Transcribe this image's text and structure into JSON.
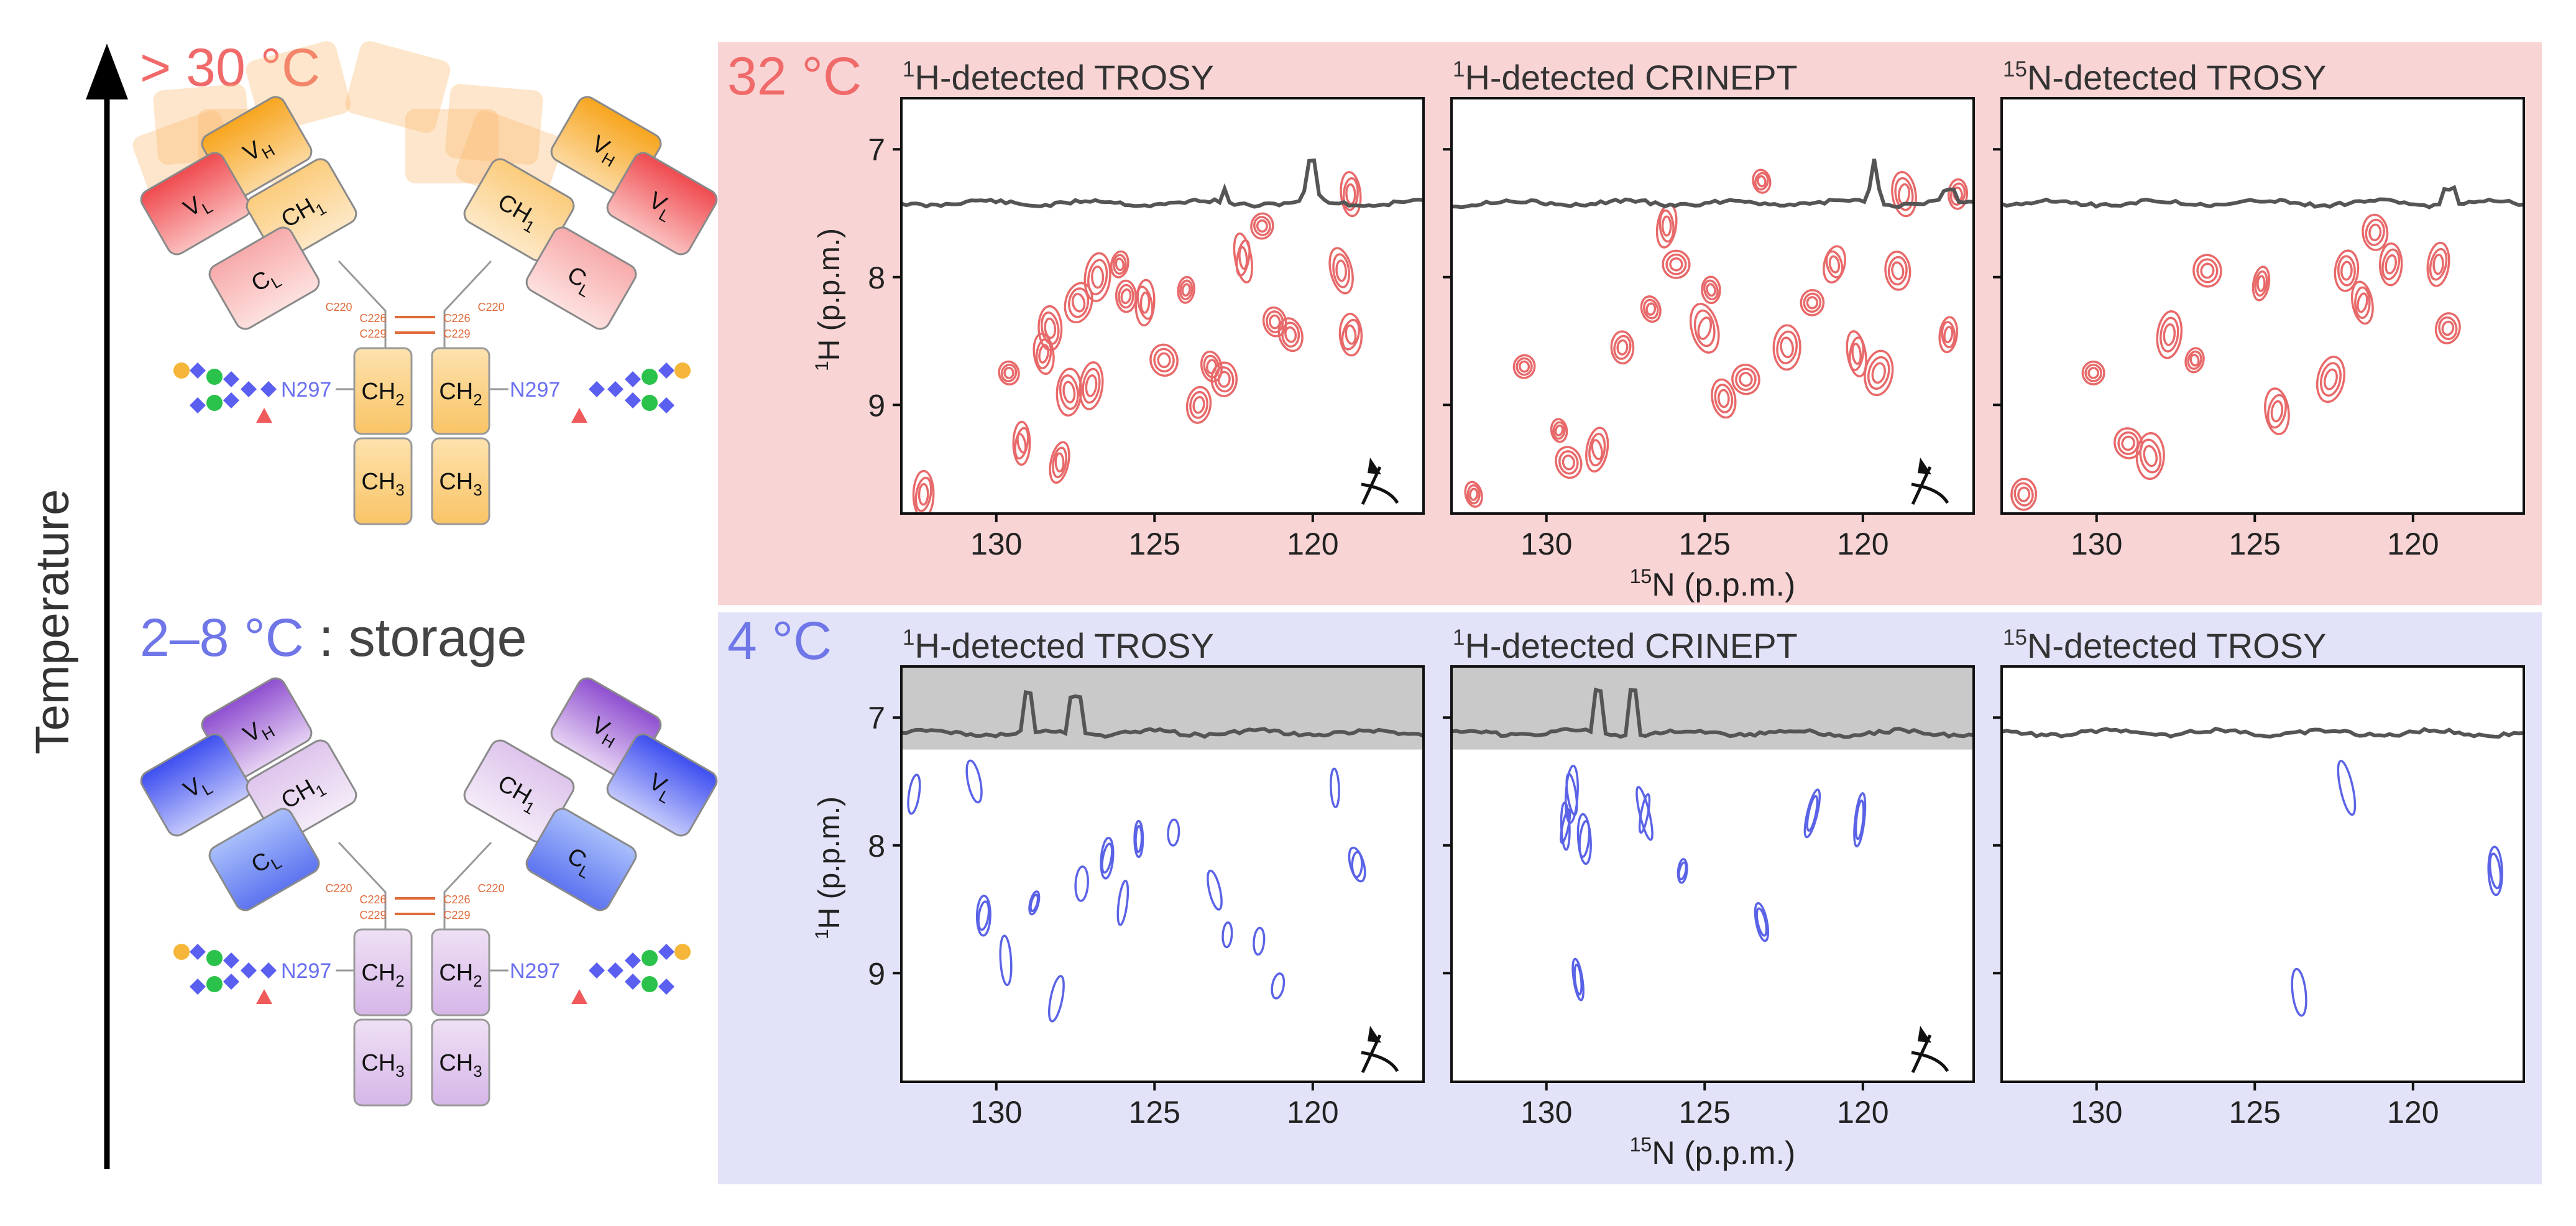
{
  "figure": {
    "temperature_axis_label": "Temperature",
    "hot_label": "> 30 °C",
    "cold_label": "2–8 °C",
    "cold_suffix": " : storage",
    "domains": {
      "vh": [
        "V",
        "H"
      ],
      "vl": [
        "V",
        "L"
      ],
      "ch1": [
        "CH",
        "1"
      ],
      "cl": [
        "C",
        "L"
      ],
      "ch2": [
        "CH",
        "2"
      ],
      "ch3": [
        "CH",
        "3"
      ]
    },
    "glycan_site": "N297",
    "disulfide_labels": [
      "C226",
      "C229",
      "C220"
    ]
  },
  "rows": [
    {
      "temperature": "32 °C",
      "panels": [
        {
          "title_sup": "1",
          "title_rest": "H-detected TROSY",
          "pulse_symbol": true
        },
        {
          "title_sup": "1",
          "title_rest": "H-detected CRINEPT",
          "pulse_symbol": true
        },
        {
          "title_sup": "15",
          "title_rest": "N-detected TROSY",
          "pulse_symbol": false
        }
      ]
    },
    {
      "temperature": "4 °C",
      "panels": [
        {
          "title_sup": "1",
          "title_rest": "H-detected TROSY",
          "pulse_symbol": true
        },
        {
          "title_sup": "1",
          "title_rest": "H-detected CRINEPT",
          "pulse_symbol": true
        },
        {
          "title_sup": "15",
          "title_rest": "N-detected TROSY",
          "pulse_symbol": false
        }
      ]
    }
  ],
  "axes": {
    "x_label_sup": "15",
    "x_label_rest": "N (p.p.m.)",
    "y_label_sup": "1",
    "y_label_rest": "H (p.p.m.)",
    "x_ticks": [
      "130",
      "125",
      "120"
    ],
    "y_ticks": [
      "7",
      "8",
      "9"
    ]
  },
  "chart_data": [
    {
      "type": "scatter",
      "title": "32 °C 1H-detected TROSY",
      "xlabel": "15N (p.p.m.)",
      "ylabel": "1H (p.p.m.)",
      "xlim": [
        133,
        116.5
      ],
      "ylim": [
        6.6,
        9.85
      ],
      "peaks_x": [
        132.3,
        129.6,
        129.2,
        128.3,
        128.0,
        127.4,
        127.0,
        126.8,
        126.1,
        125.9,
        125.3,
        124.7,
        124.0,
        123.6,
        123.2,
        122.8,
        122.2,
        121.6,
        121.2,
        120.7,
        119.1,
        118.8,
        118.8,
        128.5,
        127.7
      ],
      "peaks_y": [
        9.7,
        8.75,
        9.3,
        8.4,
        9.45,
        8.2,
        8.85,
        8.0,
        7.9,
        8.15,
        8.2,
        8.65,
        8.1,
        9.0,
        8.7,
        8.8,
        7.85,
        7.6,
        8.35,
        8.45,
        7.95,
        8.45,
        7.35,
        8.6,
        8.9
      ]
    },
    {
      "type": "scatter",
      "title": "32 °C 1H-detected CRINEPT",
      "xlabel": "15N (p.p.m.)",
      "ylabel": "1H (p.p.m.)",
      "xlim": [
        133,
        116.5
      ],
      "ylim": [
        6.6,
        9.85
      ],
      "peaks_x": [
        132.3,
        130.7,
        129.6,
        129.3,
        128.4,
        127.6,
        126.7,
        125.9,
        125.0,
        124.4,
        123.7,
        123.2,
        122.4,
        121.6,
        120.9,
        120.2,
        119.5,
        118.9,
        118.7,
        117.3,
        117.0,
        126.2,
        124.8
      ],
      "peaks_y": [
        9.7,
        8.7,
        9.2,
        9.45,
        9.35,
        8.55,
        8.25,
        7.9,
        8.4,
        8.95,
        8.8,
        7.25,
        8.55,
        8.2,
        7.9,
        8.6,
        8.75,
        7.95,
        7.35,
        8.45,
        7.35,
        7.6,
        8.1
      ]
    },
    {
      "type": "scatter",
      "title": "32 °C 15N-detected TROSY",
      "xlabel": "15N (p.p.m.)",
      "ylabel": "1H (p.p.m.)",
      "xlim": [
        133,
        116.5
      ],
      "ylim": [
        6.6,
        9.85
      ],
      "peaks_x": [
        132.3,
        130.1,
        129.0,
        128.3,
        127.7,
        126.9,
        126.5,
        124.8,
        124.3,
        122.6,
        122.1,
        121.6,
        121.2,
        120.7,
        119.2,
        118.9
      ],
      "peaks_y": [
        9.7,
        8.75,
        9.3,
        9.4,
        8.45,
        8.65,
        7.95,
        8.05,
        9.05,
        8.8,
        7.95,
        8.2,
        7.65,
        7.9,
        7.9,
        8.4
      ]
    },
    {
      "type": "scatter",
      "title": "4 °C 1H-detected TROSY",
      "xlabel": "15N (p.p.m.)",
      "ylabel": "1H (p.p.m.)",
      "xlim": [
        133,
        116.5
      ],
      "ylim": [
        6.6,
        9.85
      ],
      "peaks_x": [
        132.6,
        130.7,
        130.4,
        129.7,
        128.8,
        128.1,
        127.3,
        126.5,
        126.0,
        125.5,
        124.4,
        123.1,
        122.7,
        121.7,
        121.1,
        119.3,
        118.6
      ],
      "peaks_y": [
        7.6,
        7.5,
        8.55,
        8.9,
        8.45,
        9.2,
        8.3,
        8.1,
        8.45,
        7.95,
        7.9,
        8.35,
        8.7,
        8.75,
        9.1,
        7.55,
        8.15
      ],
      "shaded_region_y": [
        6.6,
        7.25
      ]
    },
    {
      "type": "scatter",
      "title": "4 °C 1H-detected CRINEPT",
      "xlabel": "15N (p.p.m.)",
      "ylabel": "1H (p.p.m.)",
      "xlim": [
        133,
        116.5
      ],
      "ylim": [
        6.6,
        9.85
      ],
      "peaks_x": [
        129.4,
        129.2,
        128.8,
        126.9,
        125.7,
        123.2,
        121.6,
        120.1,
        129.0
      ],
      "peaks_y": [
        7.85,
        7.6,
        7.95,
        7.75,
        8.2,
        8.6,
        7.75,
        7.8,
        9.05
      ],
      "shaded_region_y": [
        6.6,
        7.25
      ]
    },
    {
      "type": "scatter",
      "title": "4 °C 15N-detected TROSY",
      "xlabel": "15N (p.p.m.)",
      "ylabel": "1H (p.p.m.)",
      "xlim": [
        133,
        116.5
      ],
      "ylim": [
        6.6,
        9.85
      ],
      "peaks_x": [
        122.1,
        117.4,
        123.6
      ],
      "peaks_y": [
        7.55,
        8.2,
        9.15
      ]
    }
  ],
  "colors": {
    "hot_bg": "#f9d4d5",
    "cold_bg": "#e2e3f8",
    "hot_text": "#f06a6a",
    "cold_text": "#6f76e8",
    "contour_red": "#e8696a",
    "contour_blue": "#5a63e6",
    "trace": "#555555",
    "shade": "#c9c9c9"
  }
}
